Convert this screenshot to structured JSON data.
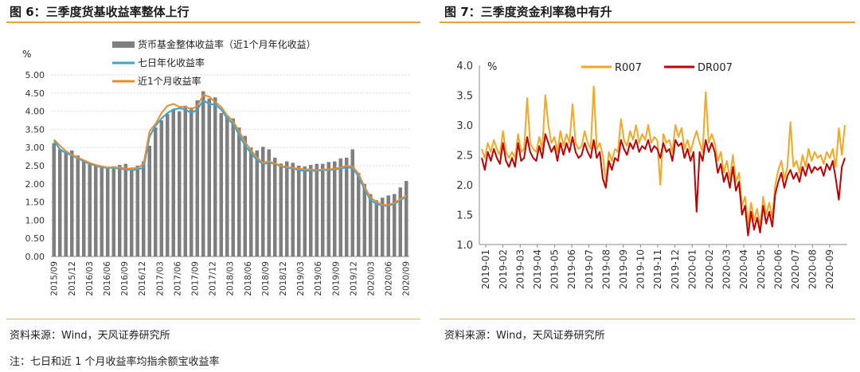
{
  "left_panel": {
    "title": "图 6：三季度货基收益率整体上行",
    "source": "资料来源：Wind，天风证券研究所",
    "note": "注：七日和近 1 个月收益率均指余额宝收益率"
  },
  "right_panel": {
    "title": "图 7：三季度资金利率稳中有升",
    "source": "资料来源：Wind，天风证券研究所"
  },
  "colors": {
    "accent": "#e8a531",
    "bar": "#7f7f7f",
    "seven_day": "#3aa6d8",
    "one_month": "#ef8a2e",
    "r007": "#f5a623",
    "dr007": "#c00000"
  },
  "chart_data": [
    {
      "type": "bar",
      "ylabel": "%",
      "ylim": [
        0,
        5.0
      ],
      "yticks": [
        "0.00",
        "0.50",
        "1.00",
        "1.50",
        "2.00",
        "2.50",
        "3.00",
        "3.50",
        "4.00",
        "4.50",
        "5.00"
      ],
      "xticks": [
        "2015/09",
        "2015/12",
        "2016/03",
        "2016/06",
        "2016/09",
        "2016/12",
        "2017/03",
        "2017/06",
        "2017/09",
        "2017/12",
        "2018/03",
        "2018/06",
        "2018/09",
        "2018/12",
        "2019/03",
        "2019/06",
        "2019/09",
        "2019/12",
        "2020/03",
        "2020/06",
        "2020/09"
      ],
      "legend_placement": "top",
      "series": [
        {
          "name": "货币基金整体收益率（近1个月年化收益）",
          "kind": "bar",
          "values": [
            3.12,
            2.95,
            2.88,
            2.92,
            2.78,
            2.65,
            2.55,
            2.5,
            2.46,
            2.44,
            2.48,
            2.52,
            2.55,
            2.45,
            2.5,
            2.62,
            3.05,
            3.55,
            3.75,
            3.92,
            4.05,
            4.0,
            4.15,
            4.1,
            4.3,
            4.55,
            4.35,
            4.38,
            3.95,
            3.88,
            3.8,
            3.55,
            3.32,
            3.0,
            2.92,
            3.02,
            2.95,
            2.72,
            2.56,
            2.62,
            2.58,
            2.5,
            2.48,
            2.52,
            2.55,
            2.55,
            2.6,
            2.62,
            2.7,
            2.72,
            2.95,
            2.3,
            2.0,
            1.72,
            1.55,
            1.62,
            1.68,
            1.72,
            1.9,
            2.08
          ]
        },
        {
          "name": "七日年化收益率",
          "kind": "line",
          "values": [
            3.18,
            2.95,
            2.85,
            2.78,
            2.7,
            2.62,
            2.55,
            2.5,
            2.45,
            2.44,
            2.44,
            2.42,
            2.4,
            2.38,
            2.4,
            2.45,
            3.3,
            3.6,
            3.8,
            3.95,
            4.05,
            4.08,
            4.05,
            3.95,
            4.05,
            4.3,
            4.2,
            4.18,
            4.05,
            3.8,
            3.65,
            3.35,
            3.05,
            2.85,
            2.65,
            2.55,
            2.58,
            2.55,
            2.48,
            2.44,
            2.42,
            2.38,
            2.36,
            2.36,
            2.36,
            2.38,
            2.38,
            2.4,
            2.42,
            2.45,
            2.44,
            2.2,
            1.85,
            1.55,
            1.45,
            1.4,
            1.4,
            1.45,
            1.55,
            1.65
          ]
        },
        {
          "name": "近1个月收益率",
          "kind": "line",
          "values": [
            3.22,
            3.05,
            2.9,
            2.8,
            2.72,
            2.65,
            2.58,
            2.52,
            2.48,
            2.45,
            2.45,
            2.45,
            2.42,
            2.42,
            2.44,
            2.55,
            3.45,
            3.65,
            3.95,
            4.15,
            4.2,
            4.12,
            4.12,
            4.05,
            4.15,
            4.45,
            4.4,
            4.25,
            4.12,
            3.88,
            3.72,
            3.45,
            3.15,
            2.92,
            2.72,
            2.58,
            2.62,
            2.56,
            2.5,
            2.46,
            2.44,
            2.42,
            2.4,
            2.4,
            2.38,
            2.4,
            2.4,
            2.42,
            2.45,
            2.5,
            2.48,
            2.28,
            1.92,
            1.62,
            1.5,
            1.42,
            1.42,
            1.48,
            1.58,
            1.68
          ]
        }
      ]
    },
    {
      "type": "line",
      "ylabel": "%",
      "ylim": [
        1.0,
        4.0
      ],
      "yticks": [
        "1.0",
        "1.5",
        "2.0",
        "2.5",
        "3.0",
        "3.5",
        "4.0"
      ],
      "xticks": [
        "2019-01",
        "2019-02",
        "2019-03",
        "2019-04",
        "2019-05",
        "2019-06",
        "2019-07",
        "2019-08",
        "2019-09",
        "2019-10",
        "2019-11",
        "2019-12",
        "2020-01",
        "2020-02",
        "2020-03",
        "2020-04",
        "2020-05",
        "2020-06",
        "2020-07",
        "2020-08",
        "2020-09"
      ],
      "legend_placement": "top",
      "series": [
        {
          "name": "R007",
          "values": [
            2.6,
            2.45,
            2.7,
            2.55,
            2.75,
            2.6,
            2.5,
            2.9,
            2.55,
            2.45,
            2.55,
            2.45,
            2.85,
            2.55,
            2.6,
            3.45,
            2.7,
            2.6,
            2.55,
            2.8,
            2.6,
            3.5,
            3.0,
            2.7,
            2.8,
            2.55,
            2.9,
            2.65,
            2.85,
            2.7,
            3.35,
            2.7,
            2.6,
            2.65,
            2.9,
            2.7,
            2.6,
            3.65,
            2.6,
            2.7,
            2.5,
            2.05,
            2.55,
            2.4,
            2.6,
            2.55,
            3.1,
            2.75,
            2.65,
            2.9,
            2.75,
            3.0,
            2.7,
            2.85,
            2.75,
            3.0,
            2.7,
            2.8,
            2.75,
            2.0,
            2.85,
            2.7,
            2.75,
            2.55,
            3.0,
            2.8,
            2.95,
            2.6,
            2.75,
            2.55,
            2.75,
            2.9,
            2.7,
            2.55,
            3.55,
            2.7,
            2.85,
            2.7,
            2.4,
            2.55,
            2.2,
            2.4,
            2.1,
            2.5,
            2.05,
            2.2,
            1.65,
            1.8,
            1.35,
            1.7,
            1.4,
            1.6,
            1.3,
            1.8,
            1.5,
            1.7,
            1.45,
            2.0,
            2.25,
            2.4,
            2.1,
            2.3,
            3.05,
            2.3,
            2.4,
            2.2,
            2.5,
            2.3,
            2.6,
            2.4,
            2.55,
            2.45,
            2.5,
            2.35,
            2.55,
            2.45,
            2.6,
            2.3,
            2.95,
            2.5,
            3.0
          ]
        },
        {
          "name": "DR007",
          "values": [
            2.45,
            2.25,
            2.55,
            2.4,
            2.6,
            2.45,
            2.35,
            2.7,
            2.4,
            2.3,
            2.45,
            2.3,
            2.7,
            2.4,
            2.45,
            2.8,
            2.55,
            2.45,
            2.4,
            2.65,
            2.45,
            2.85,
            2.7,
            2.55,
            2.65,
            2.4,
            2.7,
            2.5,
            2.7,
            2.55,
            2.8,
            2.55,
            2.45,
            2.5,
            2.7,
            2.55,
            2.45,
            2.75,
            2.45,
            2.55,
            2.1,
            1.95,
            2.4,
            2.25,
            2.45,
            2.4,
            2.75,
            2.6,
            2.5,
            2.7,
            2.6,
            2.75,
            2.55,
            2.65,
            2.6,
            2.75,
            2.55,
            2.65,
            2.6,
            2.45,
            2.7,
            2.55,
            2.6,
            2.4,
            2.75,
            2.65,
            2.7,
            2.45,
            2.6,
            2.4,
            2.55,
            1.55,
            2.55,
            2.4,
            2.75,
            2.55,
            2.7,
            2.55,
            2.2,
            2.35,
            2.05,
            2.2,
            1.95,
            2.3,
            1.9,
            2.05,
            1.5,
            1.65,
            1.15,
            1.55,
            1.25,
            1.45,
            1.2,
            1.65,
            1.35,
            1.55,
            1.3,
            1.85,
            2.05,
            2.2,
            1.95,
            2.15,
            2.25,
            2.1,
            2.2,
            2.05,
            2.3,
            2.15,
            2.35,
            2.2,
            2.3,
            2.25,
            2.3,
            2.15,
            2.35,
            2.25,
            2.4,
            2.1,
            1.75,
            2.3,
            2.45
          ]
        }
      ]
    }
  ]
}
